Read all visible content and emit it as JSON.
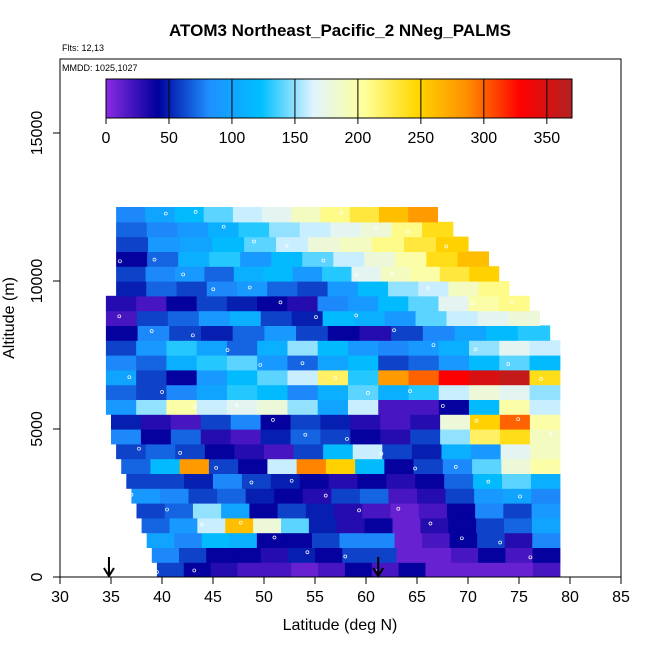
{
  "chart_data": {
    "type": "heatmap",
    "title": "ATOM3 Northeast_Pacific_2 NNeg_PALMS",
    "flights_label": "Flts: 12,13",
    "dates_label": "MMDD: 1025,1027",
    "xlabel": "Latitude (deg N)",
    "ylabel": "Altitude (m)",
    "xlim": [
      30,
      85
    ],
    "ylim": [
      0,
      17500
    ],
    "x_ticks": [
      "30",
      "35",
      "40",
      "45",
      "50",
      "55",
      "60",
      "65",
      "70",
      "75",
      "80",
      "85"
    ],
    "y_ticks": [
      "0",
      "5000",
      "10000",
      "15000"
    ],
    "colorbar": {
      "range": [
        0,
        370
      ],
      "ticks": [
        "0",
        "50",
        "100",
        "150",
        "200",
        "250",
        "300",
        "350"
      ],
      "colors": [
        "#8a2be2",
        "#00009c",
        "#1e90ff",
        "#00bfff",
        "#e0f4ff",
        "#ffff99",
        "#ffd700",
        "#ff8c00",
        "#ff0000",
        "#b22222"
      ]
    },
    "arrow_latitudes": [
      34.8,
      61.2
    ],
    "row_height_m": 500,
    "rows": [
      {
        "alt": 250,
        "lat": [
          39.5,
          79
        ],
        "values": [
          60,
          40,
          30,
          20,
          20,
          10,
          20,
          40,
          20,
          40,
          10,
          10,
          10,
          10,
          20
        ]
      },
      {
        "alt": 750,
        "lat": [
          39,
          79
        ],
        "values": [
          80,
          60,
          40,
          40,
          30,
          50,
          40,
          60,
          60,
          10,
          10,
          20,
          40,
          20,
          40
        ]
      },
      {
        "alt": 1250,
        "lat": [
          38.5,
          79
        ],
        "values": [
          100,
          80,
          120,
          110,
          40,
          40,
          60,
          80,
          80,
          10,
          20,
          40,
          60,
          30,
          80
        ]
      },
      {
        "alt": 1750,
        "lat": [
          38,
          79
        ],
        "values": [
          70,
          90,
          160,
          260,
          180,
          140,
          50,
          30,
          40,
          10,
          30,
          40,
          60,
          70,
          100
        ]
      },
      {
        "alt": 2250,
        "lat": [
          37.5,
          79
        ],
        "values": [
          60,
          70,
          150,
          100,
          40,
          60,
          50,
          30,
          20,
          10,
          20,
          40,
          80,
          60,
          90
        ]
      },
      {
        "alt": 2750,
        "lat": [
          37,
          79
        ],
        "values": [
          90,
          80,
          60,
          70,
          50,
          40,
          30,
          60,
          70,
          20,
          30,
          60,
          90,
          100,
          80
        ]
      },
      {
        "alt": 3250,
        "lat": [
          36.5,
          79
        ],
        "values": [
          60,
          60,
          50,
          80,
          60,
          50,
          40,
          30,
          40,
          30,
          40,
          70,
          120,
          140,
          110
        ]
      },
      {
        "alt": 3750,
        "lat": [
          36,
          79
        ],
        "values": [
          70,
          120,
          280,
          60,
          40,
          160,
          290,
          250,
          120,
          40,
          60,
          80,
          140,
          180,
          200
        ]
      },
      {
        "alt": 4250,
        "lat": [
          35.5,
          79
        ],
        "values": [
          60,
          70,
          60,
          40,
          30,
          20,
          60,
          120,
          160,
          60,
          50,
          110,
          90,
          170,
          190
        ]
      },
      {
        "alt": 4750,
        "lat": [
          35,
          79
        ],
        "values": [
          80,
          40,
          70,
          30,
          20,
          50,
          70,
          60,
          40,
          30,
          60,
          150,
          220,
          240,
          190
        ]
      },
      {
        "alt": 5250,
        "lat": [
          35,
          79
        ],
        "values": [
          50,
          30,
          20,
          60,
          80,
          40,
          60,
          50,
          30,
          20,
          30,
          180,
          250,
          300,
          200
        ]
      },
      {
        "alt": 5750,
        "lat": [
          34.5,
          79
        ],
        "values": [
          90,
          150,
          200,
          160,
          170,
          180,
          150,
          100,
          160,
          20,
          20,
          40,
          120,
          200,
          160
        ]
      },
      {
        "alt": 6250,
        "lat": [
          34.5,
          79
        ],
        "values": [
          70,
          60,
          80,
          100,
          130,
          120,
          80,
          110,
          140,
          110,
          130,
          160,
          180,
          170,
          150
        ]
      },
      {
        "alt": 6750,
        "lat": [
          34.5,
          79
        ],
        "values": [
          100,
          60,
          40,
          90,
          120,
          140,
          160,
          220,
          130,
          280,
          300,
          330,
          350,
          360,
          240
        ]
      },
      {
        "alt": 7250,
        "lat": [
          34.5,
          79
        ],
        "values": [
          80,
          70,
          110,
          130,
          140,
          90,
          70,
          100,
          120,
          60,
          70,
          90,
          120,
          140,
          120
        ]
      },
      {
        "alt": 7750,
        "lat": [
          34.5,
          79
        ],
        "values": [
          60,
          90,
          130,
          100,
          70,
          110,
          150,
          120,
          90,
          80,
          90,
          110,
          150,
          170,
          160
        ]
      },
      {
        "alt": 8250,
        "lat": [
          34.5,
          78
        ],
        "values": [
          40,
          80,
          60,
          50,
          70,
          90,
          60,
          40,
          30,
          60,
          80,
          100,
          120,
          130
        ]
      },
      {
        "alt": 8750,
        "lat": [
          34.5,
          77
        ],
        "values": [
          20,
          60,
          70,
          90,
          110,
          60,
          50,
          120,
          110,
          90,
          140,
          160,
          170,
          180
        ]
      },
      {
        "alt": 9250,
        "lat": [
          34.5,
          76
        ],
        "values": [
          30,
          20,
          40,
          60,
          50,
          40,
          30,
          80,
          90,
          120,
          140,
          170,
          200,
          210
        ]
      },
      {
        "alt": 9750,
        "lat": [
          35.5,
          74
        ],
        "values": [
          50,
          70,
          60,
          80,
          90,
          70,
          60,
          90,
          120,
          150,
          160,
          190,
          210
        ]
      },
      {
        "alt": 10250,
        "lat": [
          35.5,
          73
        ],
        "values": [
          60,
          80,
          90,
          70,
          110,
          120,
          90,
          130,
          170,
          190,
          200,
          230,
          250
        ]
      },
      {
        "alt": 10750,
        "lat": [
          35.5,
          72
        ],
        "values": [
          40,
          70,
          110,
          130,
          90,
          120,
          140,
          160,
          180,
          200,
          240,
          260
        ]
      },
      {
        "alt": 11250,
        "lat": [
          35.5,
          70
        ],
        "values": [
          60,
          90,
          100,
          120,
          140,
          160,
          180,
          190,
          210,
          230,
          250
        ]
      },
      {
        "alt": 11750,
        "lat": [
          35.5,
          68.5
        ],
        "values": [
          70,
          80,
          90,
          110,
          130,
          150,
          160,
          170,
          180,
          210,
          240
        ]
      },
      {
        "alt": 12250,
        "lat": [
          35.5,
          67
        ],
        "values": [
          80,
          100,
          120,
          140,
          160,
          170,
          190,
          210,
          230,
          260,
          280
        ]
      }
    ]
  }
}
